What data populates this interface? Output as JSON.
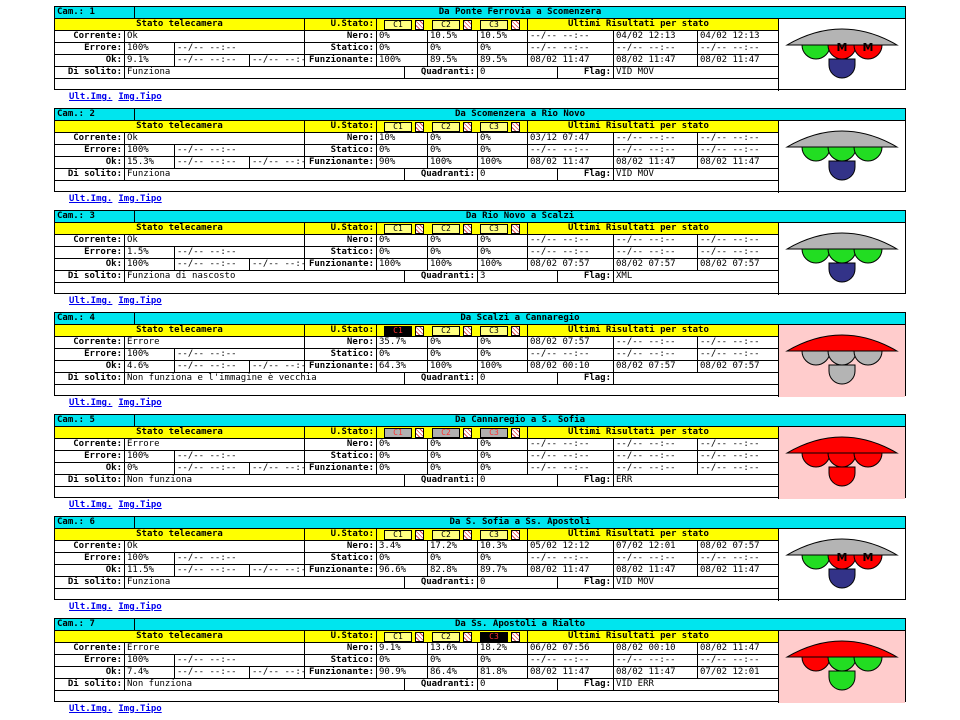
{
  "labels": {
    "cam": "Cam.:",
    "stato_telecamera": "Stato telecamera",
    "u_stato": "U.Stato:",
    "c1": "C1",
    "c2": "C2",
    "c3": "C3",
    "ultimi": "Ultimi Risultati per stato",
    "corrente": "Corrente:",
    "errore": "Errore:",
    "ok": "Ok:",
    "di_solito": "Di solito:",
    "nero": "Nero:",
    "statico": "Statico:",
    "funzionante": "Funzionante:",
    "quadranti": "Quadranti:",
    "flag": "Flag:",
    "ult_img": "Ult.Img.",
    "img_tipo": "Img.Tipo"
  },
  "cameras": [
    {
      "num": "1",
      "title": "Da Ponte Ferrovia a Scomenzera",
      "c": [
        "ok",
        "ok",
        "ok"
      ],
      "alarm": false,
      "corrente": "Ok",
      "errore": [
        "100%",
        "--/-- --:--"
      ],
      "ok": [
        "9.1%",
        "--/-- --:--",
        "--/-- --:--"
      ],
      "nero": [
        "0%",
        "10.5%",
        "10.5%"
      ],
      "statico": [
        "0%",
        "0%",
        "0%"
      ],
      "funz": [
        "100%",
        "89.5%",
        "89.5%"
      ],
      "res": [
        [
          "--/-- --:--",
          "04/02 12:13",
          "04/02 12:13"
        ],
        [
          "--/-- --:--",
          "--/-- --:--",
          "--/-- --:--"
        ],
        [
          "08/02 11:47",
          "08/02 11:47",
          "08/02 11:47"
        ]
      ],
      "solito": "Funziona",
      "quadranti": "0",
      "flag": "VID MOV",
      "light": {
        "top": "gray",
        "c1": "green",
        "c2": "red",
        "c3": "red",
        "bottom": "navy",
        "mark2": "M",
        "mark3": "M"
      }
    },
    {
      "num": "2",
      "title": "Da Scomenzera a Rio Novo",
      "c": [
        "ok",
        "ok",
        "ok"
      ],
      "alarm": false,
      "corrente": "Ok",
      "errore": [
        "100%",
        "--/-- --:--"
      ],
      "ok": [
        "15.3%",
        "--/-- --:--",
        "--/-- --:--"
      ],
      "nero": [
        "10%",
        "0%",
        "0%"
      ],
      "statico": [
        "0%",
        "0%",
        "0%"
      ],
      "funz": [
        "90%",
        "100%",
        "100%"
      ],
      "res": [
        [
          "03/12 07:47",
          "--/-- --:--",
          "--/-- --:--"
        ],
        [
          "--/-- --:--",
          "--/-- --:--",
          "--/-- --:--"
        ],
        [
          "08/02 11:47",
          "08/02 11:47",
          "08/02 11:47"
        ]
      ],
      "solito": "Funziona",
      "quadranti": "0",
      "flag": "VID MOV",
      "light": {
        "top": "gray",
        "c1": "green",
        "c2": "green",
        "c3": "green",
        "bottom": "navy",
        "mark2": "",
        "mark3": ""
      }
    },
    {
      "num": "3",
      "title": "Da Rio Novo a Scalzi",
      "c": [
        "ok",
        "ok",
        "ok"
      ],
      "alarm": false,
      "corrente": "Ok",
      "errore": [
        "1.5%",
        "--/-- --:--"
      ],
      "ok": [
        "100%",
        "--/-- --:--",
        "--/-- --:--"
      ],
      "nero": [
        "0%",
        "0%",
        "0%"
      ],
      "statico": [
        "0%",
        "0%",
        "0%"
      ],
      "funz": [
        "100%",
        "100%",
        "100%"
      ],
      "res": [
        [
          "--/-- --:--",
          "--/-- --:--",
          "--/-- --:--"
        ],
        [
          "--/-- --:--",
          "--/-- --:--",
          "--/-- --:--"
        ],
        [
          "08/02 07:57",
          "08/02 07:57",
          "08/02 07:57"
        ]
      ],
      "solito": "Funziona di nascosto",
      "quadranti": "3",
      "flag": "XML",
      "light": {
        "top": "gray",
        "c1": "green",
        "c2": "green",
        "c3": "green",
        "bottom": "navy",
        "mark2": "",
        "mark3": ""
      }
    },
    {
      "num": "4",
      "title": "Da Scalzi a Cannaregio",
      "c": [
        "ko",
        "ok",
        "ok"
      ],
      "alarm": true,
      "corrente": "Errore",
      "errore": [
        "100%",
        "--/-- --:--"
      ],
      "ok": [
        "4.6%",
        "--/-- --:--",
        "--/-- --:--"
      ],
      "nero": [
        "35.7%",
        "0%",
        "0%"
      ],
      "statico": [
        "0%",
        "0%",
        "0%"
      ],
      "funz": [
        "64.3%",
        "100%",
        "100%"
      ],
      "res": [
        [
          "08/02 07:57",
          "--/-- --:--",
          "--/-- --:--"
        ],
        [
          "--/-- --:--",
          "--/-- --:--",
          "--/-- --:--"
        ],
        [
          "08/02 00:10",
          "08/02 07:57",
          "08/02 07:57"
        ]
      ],
      "solito": "Non funziona e l'immagine è vecchia",
      "quadranti": "0",
      "flag": "",
      "light": {
        "top": "red",
        "c1": "gray",
        "c2": "gray",
        "c3": "gray",
        "bottom": "gray",
        "mark2": "",
        "mark3": ""
      }
    },
    {
      "num": "5",
      "title": "Da Cannaregio a S. Sofia",
      "c": [
        "gr",
        "gr",
        "gr"
      ],
      "alarm": true,
      "corrente": "Errore",
      "errore": [
        "100%",
        "--/-- --:--"
      ],
      "ok": [
        "0%",
        "--/-- --:--",
        "--/-- --:--"
      ],
      "nero": [
        "0%",
        "0%",
        "0%"
      ],
      "statico": [
        "0%",
        "0%",
        "0%"
      ],
      "funz": [
        "0%",
        "0%",
        "0%"
      ],
      "res": [
        [
          "--/-- --:--",
          "--/-- --:--",
          "--/-- --:--"
        ],
        [
          "--/-- --:--",
          "--/-- --:--",
          "--/-- --:--"
        ],
        [
          "--/-- --:--",
          "--/-- --:--",
          "--/-- --:--"
        ]
      ],
      "solito": "Non funziona",
      "quadranti": "0",
      "flag": "ERR",
      "light": {
        "top": "red",
        "c1": "red",
        "c2": "red",
        "c3": "red",
        "bottom": "red",
        "mark2": "",
        "mark3": ""
      }
    },
    {
      "num": "6",
      "title": "Da S. Sofia a Ss. Apostoli",
      "c": [
        "ok",
        "ok",
        "ok"
      ],
      "alarm": false,
      "corrente": "Ok",
      "errore": [
        "100%",
        "--/-- --:--"
      ],
      "ok": [
        "11.5%",
        "--/-- --:--",
        "--/-- --:--"
      ],
      "nero": [
        "3.4%",
        "17.2%",
        "10.3%"
      ],
      "statico": [
        "0%",
        "0%",
        "0%"
      ],
      "funz": [
        "96.6%",
        "82.8%",
        "89.7%"
      ],
      "res": [
        [
          "05/02 12:12",
          "07/02 12:01",
          "08/02 07:57"
        ],
        [
          "--/-- --:--",
          "--/-- --:--",
          "--/-- --:--"
        ],
        [
          "08/02 11:47",
          "08/02 11:47",
          "08/02 11:47"
        ]
      ],
      "solito": "Funziona",
      "quadranti": "0",
      "flag": "VID MOV",
      "light": {
        "top": "gray",
        "c1": "green",
        "c2": "red",
        "c3": "red",
        "bottom": "navy",
        "mark2": "M",
        "mark3": "M"
      }
    },
    {
      "num": "7",
      "title": "Da Ss. Apostoli a Rialto",
      "c": [
        "ok",
        "ok",
        "ko"
      ],
      "alarm": true,
      "corrente": "Errore",
      "errore": [
        "100%",
        "--/-- --:--"
      ],
      "ok": [
        "7.4%",
        "--/-- --:--",
        "--/-- --:--"
      ],
      "nero": [
        "9.1%",
        "13.6%",
        "18.2%"
      ],
      "statico": [
        "0%",
        "0%",
        "0%"
      ],
      "funz": [
        "90.9%",
        "86.4%",
        "81.8%"
      ],
      "res": [
        [
          "06/02 07:56",
          "08/02 00:10",
          "08/02 11:47"
        ],
        [
          "--/-- --:--",
          "--/-- --:--",
          "--/-- --:--"
        ],
        [
          "08/02 11:47",
          "08/02 11:47",
          "07/02 12:01"
        ]
      ],
      "solito": "Non funziona",
      "quadranti": "0",
      "flag": "VID ERR",
      "light": {
        "top": "red",
        "c1": "red",
        "c2": "green",
        "c3": "green",
        "bottom": "green",
        "mark2": "",
        "mark3": ""
      }
    }
  ],
  "colors": {
    "header_cyan": "#00e5ee",
    "header_yellow": "#ffff00",
    "alarm_bg": "#ffcccc",
    "gray": "#b4b4b4",
    "red": "#ff0000",
    "green": "#22dd22",
    "navy": "#333388"
  }
}
